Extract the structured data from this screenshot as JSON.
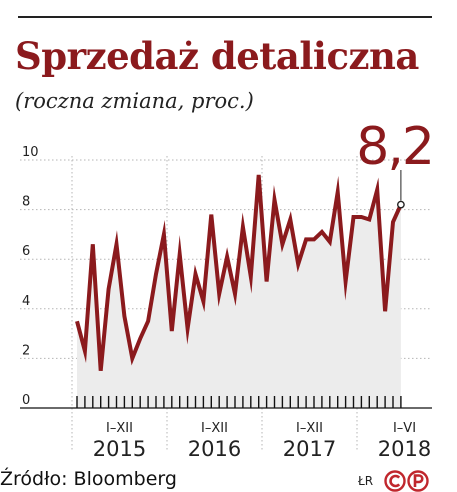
{
  "header": {
    "title": "Sprzedaż detaliczna",
    "subtitle": "(roczna zmiana, proc.)"
  },
  "callout": {
    "label": "8,2"
  },
  "footer": {
    "source": "Źródło: Bloomberg",
    "author": "ŁR"
  },
  "colors": {
    "line": "#8b1a1d",
    "title": "#8b1a1d",
    "area": "#ececec",
    "grid": "#b5b5b5"
  },
  "chart_data": {
    "type": "line",
    "title": "Sprzedaż detaliczna",
    "subtitle": "(roczna zmiana, proc.)",
    "ylim": [
      0,
      10
    ],
    "yticks": [
      0,
      2,
      4,
      6,
      8,
      10
    ],
    "ytick_labels": [
      "0",
      "2",
      "4",
      "6",
      "8",
      "10"
    ],
    "grid": true,
    "year_groups": [
      {
        "period": "I–XII",
        "year": "2015"
      },
      {
        "period": "I–XII",
        "year": "2016"
      },
      {
        "period": "I–XII",
        "year": "2017"
      },
      {
        "period": "I–VI",
        "year": "2018"
      }
    ],
    "series": [
      {
        "values": [
          3.5,
          2.3,
          6.6,
          1.5,
          4.8,
          6.6,
          3.7,
          2.0,
          2.8,
          3.5,
          5.4,
          7.0,
          3.1,
          6.2,
          3.2,
          5.4,
          4.3,
          7.8,
          4.6,
          6.1,
          4.6,
          7.3,
          5.3,
          9.4,
          5.1,
          8.4,
          6.6,
          7.6,
          5.8,
          6.8,
          6.8,
          7.1,
          6.7,
          8.7,
          5.1,
          7.7,
          7.7,
          7.6,
          8.8,
          3.9,
          7.5,
          8.2
        ]
      }
    ],
    "callout_value": 8.2
  }
}
